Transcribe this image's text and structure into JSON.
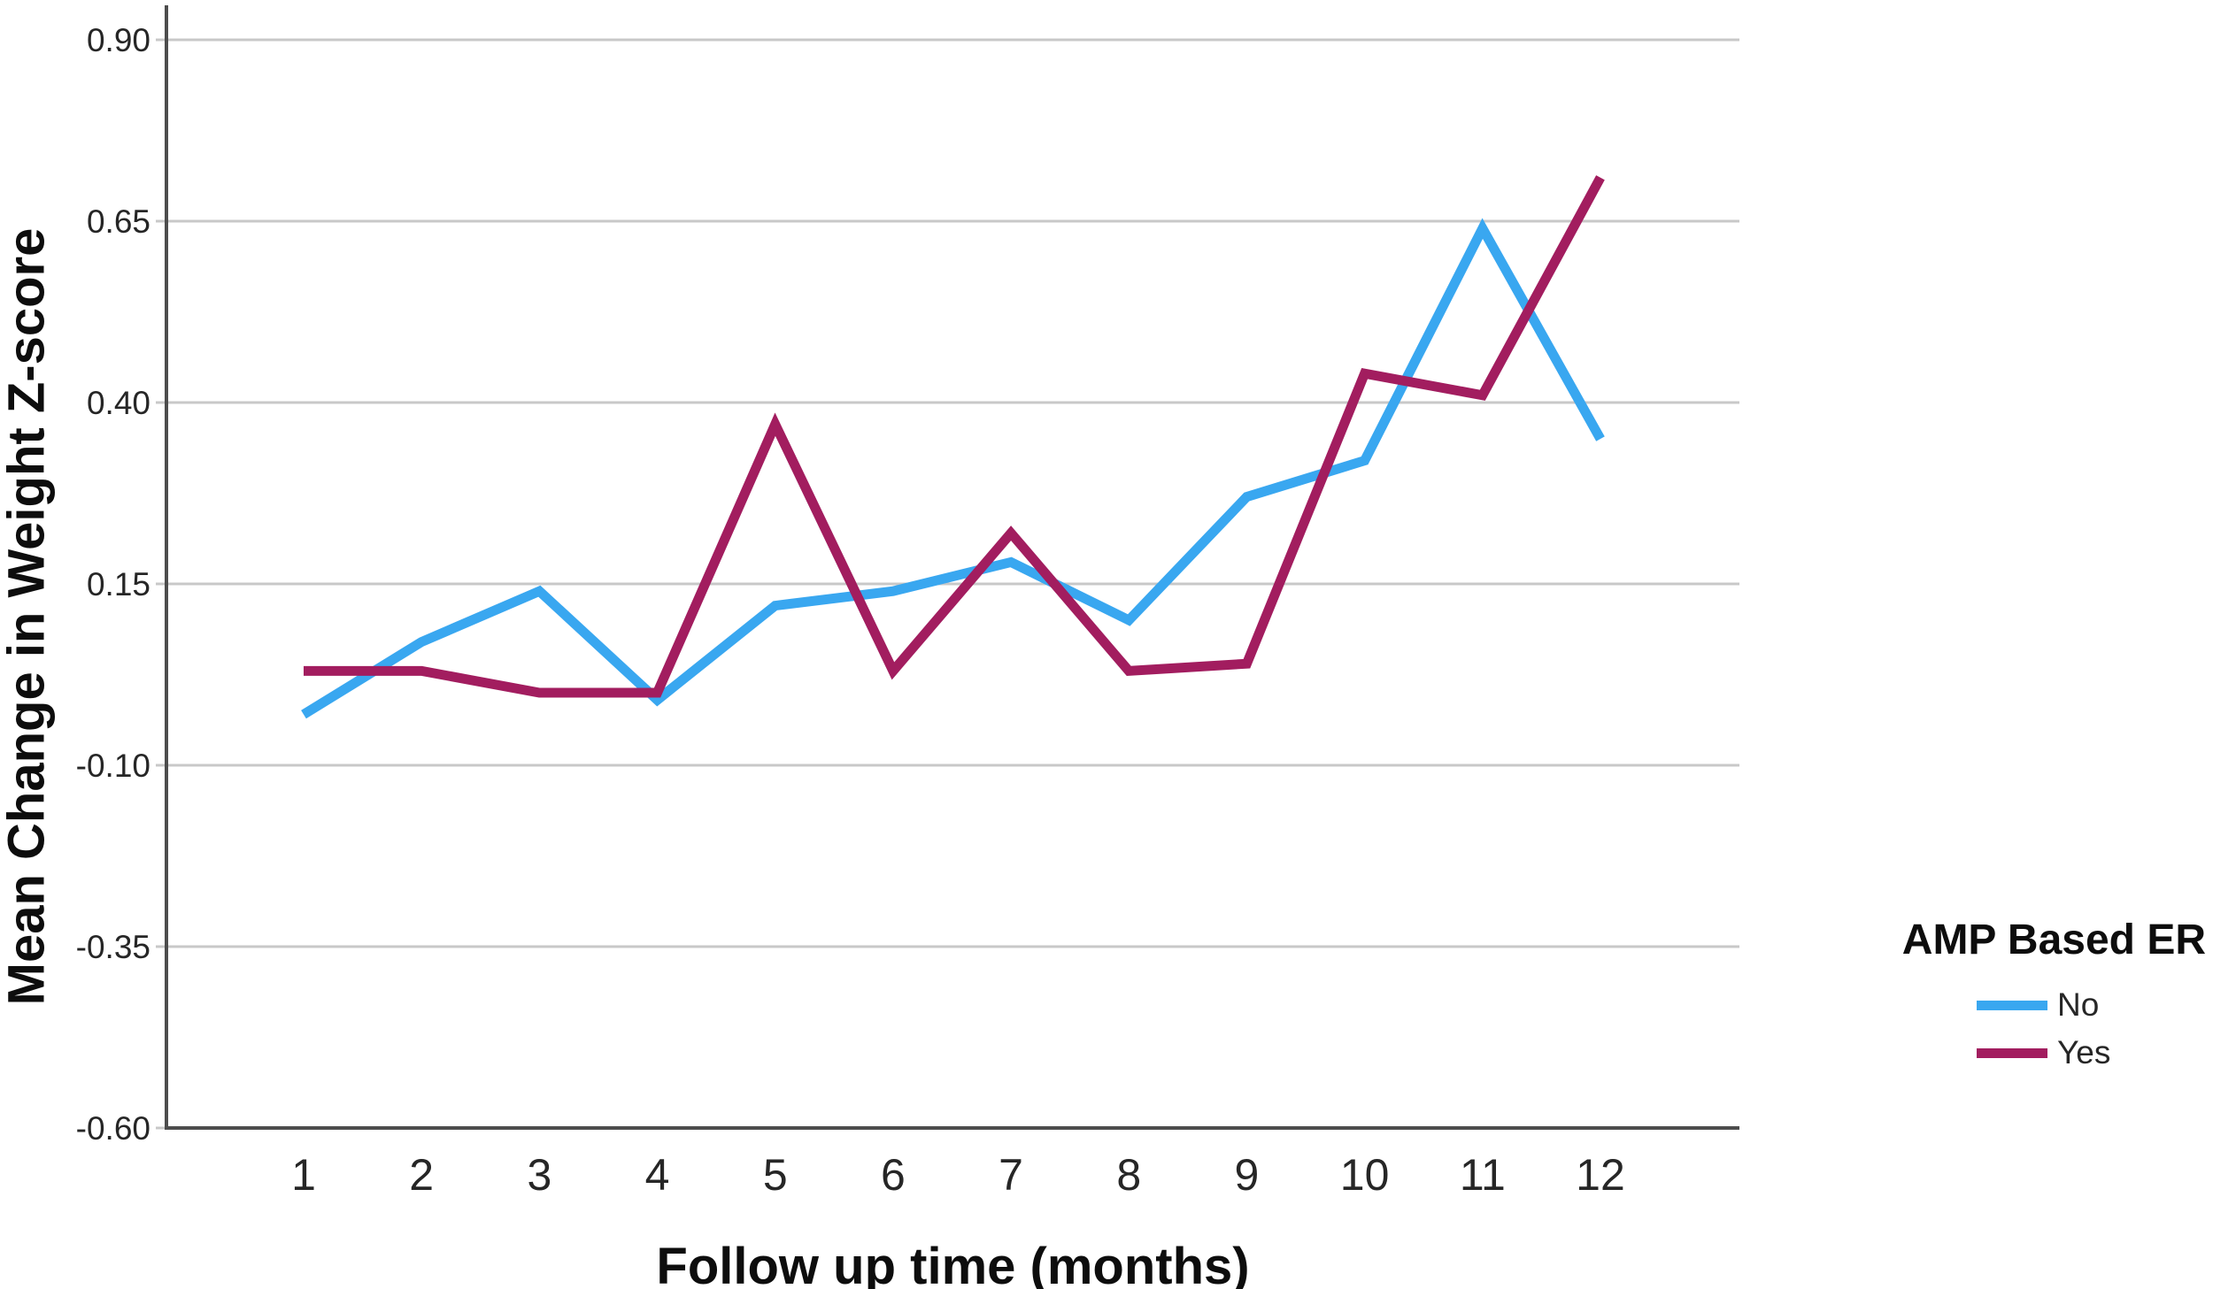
{
  "colors": {
    "background": "#ffffff",
    "gridline": "#c8c8c8",
    "axis": "#4d4d4d",
    "tick_text": "#262626",
    "title_text": "#0d0d0d",
    "series_no": "#39a7f0",
    "series_yes": "#a21d5f"
  },
  "chart_data": {
    "type": "line",
    "title": "",
    "xlabel": "Follow up time (months)",
    "ylabel": "Mean Change in Weight Z-score",
    "categories": [
      "1",
      "2",
      "3",
      "4",
      "5",
      "6",
      "7",
      "8",
      "9",
      "10",
      "11",
      "12"
    ],
    "series": [
      {
        "name": "No",
        "color": "#39a7f0",
        "values": [
          -0.03,
          0.07,
          0.14,
          -0.01,
          0.12,
          0.14,
          0.18,
          0.1,
          0.27,
          0.32,
          0.64,
          0.35
        ]
      },
      {
        "name": "Yes",
        "color": "#a21d5f",
        "values": [
          0.03,
          0.03,
          0.0,
          0.0,
          0.37,
          0.03,
          0.22,
          0.03,
          0.04,
          0.44,
          0.41,
          0.71
        ]
      }
    ],
    "yticks": [
      0.9,
      0.65,
      0.4,
      0.15,
      -0.1,
      -0.35,
      -0.6
    ],
    "ytick_labels": [
      "0.90",
      "0.65",
      "0.40",
      "0.15",
      "-0.10",
      "-0.35",
      "-0.60"
    ],
    "ylim": [
      -0.6,
      0.9
    ],
    "grid": "horizontal",
    "legend": {
      "title": "AMP Based ER",
      "position": "right",
      "entries": [
        "No",
        "Yes"
      ]
    }
  }
}
